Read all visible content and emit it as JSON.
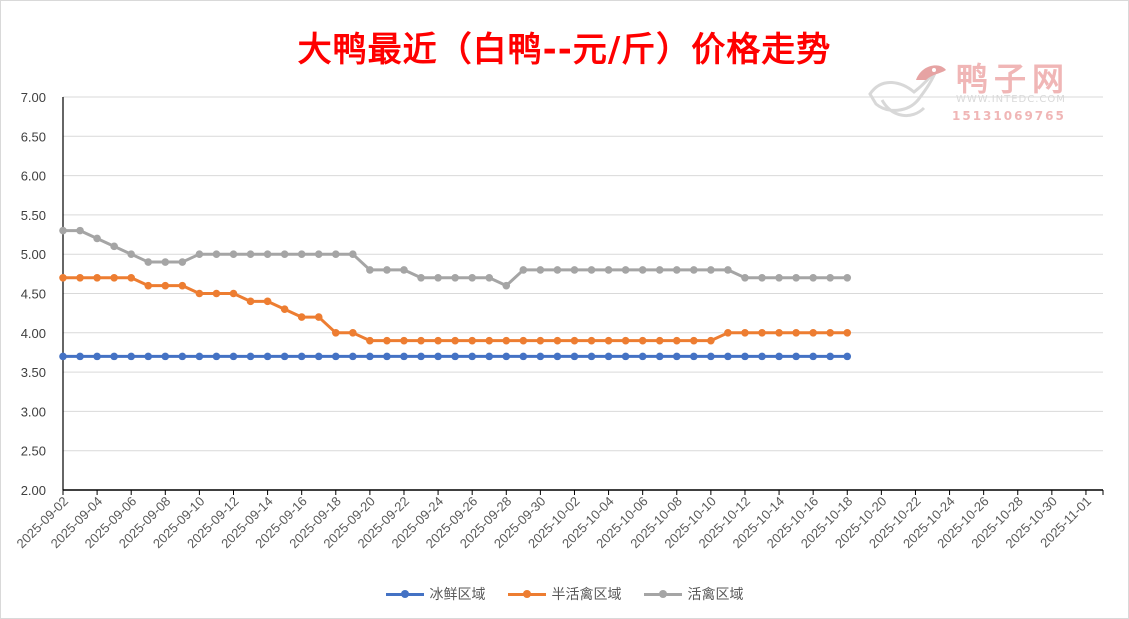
{
  "chart_data": {
    "type": "line",
    "title": "大鸭最近（白鸭--元/斤）价格走势",
    "x": [
      "2025-09-02",
      "2025-09-03",
      "2025-09-04",
      "2025-09-05",
      "2025-09-06",
      "2025-09-07",
      "2025-09-08",
      "2025-09-09",
      "2025-09-10",
      "2025-09-11",
      "2025-09-12",
      "2025-09-13",
      "2025-09-14",
      "2025-09-15",
      "2025-09-16",
      "2025-09-17",
      "2025-09-18",
      "2025-09-19",
      "2025-09-20",
      "2025-09-21",
      "2025-09-22",
      "2025-09-23",
      "2025-09-24",
      "2025-09-25",
      "2025-09-26",
      "2025-09-27",
      "2025-09-28",
      "2025-09-29",
      "2025-09-30",
      "2025-10-01",
      "2025-10-02",
      "2025-10-03",
      "2025-10-04",
      "2025-10-05",
      "2025-10-06",
      "2025-10-07",
      "2025-10-08",
      "2025-10-09",
      "2025-10-10",
      "2025-10-11",
      "2025-10-12",
      "2025-10-13",
      "2025-10-14",
      "2025-10-15",
      "2025-10-16",
      "2025-10-17",
      "2025-10-18"
    ],
    "x_tick_labels": [
      "2025-09-02",
      "2025-09-04",
      "2025-09-06",
      "2025-09-08",
      "2025-09-10",
      "2025-09-12",
      "2025-09-14",
      "2025-09-16",
      "2025-09-18",
      "2025-09-20",
      "2025-09-22",
      "2025-09-24",
      "2025-09-26",
      "2025-09-28",
      "2025-09-30",
      "2025-10-02",
      "2025-10-04",
      "2025-10-06",
      "2025-10-08",
      "2025-10-10",
      "2025-10-12",
      "2025-10-14",
      "2025-10-16",
      "2025-10-18",
      "2025-10-20",
      "2025-10-22",
      "2025-10-24",
      "2025-10-26",
      "2025-10-28",
      "2025-10-30",
      "2025-11-01"
    ],
    "xlim": [
      "2025-09-02",
      "2025-11-02"
    ],
    "y_tick_labels": [
      "2.00",
      "2.50",
      "3.00",
      "3.50",
      "4.00",
      "4.50",
      "5.00",
      "5.50",
      "6.00",
      "6.50",
      "7.00"
    ],
    "ylim": [
      2.0,
      7.0
    ],
    "grid": true,
    "legend_position": "bottom",
    "series": [
      {
        "name": "冰鲜区域",
        "color": "#4472c4",
        "values": [
          3.7,
          3.7,
          3.7,
          3.7,
          3.7,
          3.7,
          3.7,
          3.7,
          3.7,
          3.7,
          3.7,
          3.7,
          3.7,
          3.7,
          3.7,
          3.7,
          3.7,
          3.7,
          3.7,
          3.7,
          3.7,
          3.7,
          3.7,
          3.7,
          3.7,
          3.7,
          3.7,
          3.7,
          3.7,
          3.7,
          3.7,
          3.7,
          3.7,
          3.7,
          3.7,
          3.7,
          3.7,
          3.7,
          3.7,
          3.7,
          3.7,
          3.7,
          3.7,
          3.7,
          3.7,
          3.7,
          3.7
        ]
      },
      {
        "name": "半活禽区域",
        "color": "#ed7d31",
        "values": [
          4.7,
          4.7,
          4.7,
          4.7,
          4.7,
          4.6,
          4.6,
          4.6,
          4.5,
          4.5,
          4.5,
          4.4,
          4.4,
          4.3,
          4.2,
          4.2,
          4.0,
          4.0,
          3.9,
          3.9,
          3.9,
          3.9,
          3.9,
          3.9,
          3.9,
          3.9,
          3.9,
          3.9,
          3.9,
          3.9,
          3.9,
          3.9,
          3.9,
          3.9,
          3.9,
          3.9,
          3.9,
          3.9,
          3.9,
          4.0,
          4.0,
          4.0,
          4.0,
          4.0,
          4.0,
          4.0,
          4.0
        ]
      },
      {
        "name": "活禽区域",
        "color": "#a5a5a5",
        "values": [
          5.3,
          5.3,
          5.2,
          5.1,
          5.0,
          4.9,
          4.9,
          4.9,
          5.0,
          5.0,
          5.0,
          5.0,
          5.0,
          5.0,
          5.0,
          5.0,
          5.0,
          5.0,
          4.8,
          4.8,
          4.8,
          4.7,
          4.7,
          4.7,
          4.7,
          4.7,
          4.6,
          4.8,
          4.8,
          4.8,
          4.8,
          4.8,
          4.8,
          4.8,
          4.8,
          4.8,
          4.8,
          4.8,
          4.8,
          4.8,
          4.7,
          4.7,
          4.7,
          4.7,
          4.7,
          4.7,
          4.7
        ]
      }
    ]
  },
  "watermark": {
    "brand": "鸭子网",
    "url": "WWW.INTEDC.COM",
    "phone": "15131069765"
  }
}
